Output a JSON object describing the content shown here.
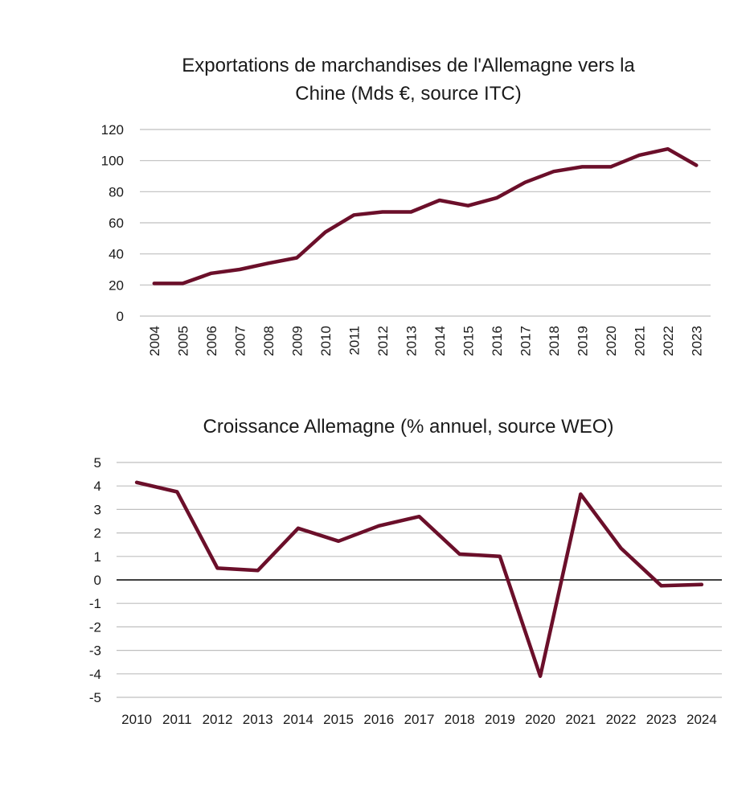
{
  "charts": [
    {
      "title_lines": [
        "Exportations de marchandises de l'Allemagne vers la",
        "Chine (Mds €, source ITC)"
      ],
      "y_ticks": [
        "120",
        "100",
        "80",
        "60",
        "40",
        "20",
        "0"
      ],
      "x_ticks": [
        "2004",
        "2005",
        "2006",
        "2007",
        "2008",
        "2009",
        "2010",
        "2011",
        "2012",
        "2013",
        "2014",
        "2015",
        "2016",
        "2017",
        "2018",
        "2019",
        "2020",
        "2021",
        "2022",
        "2023"
      ]
    },
    {
      "title_lines": [
        "Croissance Allemagne (% annuel, source WEO)"
      ],
      "y_ticks": [
        "5",
        "4",
        "3",
        "2",
        "1",
        "0",
        "-1",
        "-2",
        "-3",
        "-4",
        "-5"
      ],
      "x_ticks": [
        "2010",
        "2011",
        "2012",
        "2013",
        "2014",
        "2015",
        "2016",
        "2017",
        "2018",
        "2019",
        "2020",
        "2021",
        "2022",
        "2023",
        "2024"
      ]
    }
  ],
  "colors": {
    "series": "#6b0f2a",
    "grid": "#bfbfbf",
    "zero_line": "#000000"
  },
  "chart_data": [
    {
      "type": "line",
      "title": "Exportations de marchandises de l'Allemagne vers la Chine (Mds €, source ITC)",
      "xlabel": "",
      "ylabel": "",
      "ylim": [
        0,
        120
      ],
      "x": [
        2004,
        2005,
        2006,
        2007,
        2008,
        2009,
        2010,
        2011,
        2012,
        2013,
        2014,
        2015,
        2016,
        2017,
        2018,
        2019,
        2020,
        2021,
        2022,
        2023
      ],
      "series": [
        {
          "name": "Exportations vers la Chine",
          "values": [
            21,
            21,
            27.5,
            30,
            34,
            37.5,
            54,
            65,
            67,
            67,
            74.5,
            71,
            76,
            86,
            93,
            96,
            96,
            103.5,
            107.5,
            97
          ]
        }
      ],
      "grid": true,
      "legend": "none"
    },
    {
      "type": "line",
      "title": "Croissance Allemagne (% annuel, source WEO)",
      "xlabel": "",
      "ylabel": "",
      "ylim": [
        -5,
        5
      ],
      "x": [
        2010,
        2011,
        2012,
        2013,
        2014,
        2015,
        2016,
        2017,
        2018,
        2019,
        2020,
        2021,
        2022,
        2023,
        2024
      ],
      "series": [
        {
          "name": "Croissance",
          "values": [
            4.15,
            3.75,
            0.5,
            0.4,
            2.2,
            1.65,
            2.3,
            2.7,
            1.1,
            1.0,
            -4.1,
            3.65,
            1.35,
            -0.25,
            -0.2
          ]
        }
      ],
      "grid": true,
      "legend": "none"
    }
  ]
}
